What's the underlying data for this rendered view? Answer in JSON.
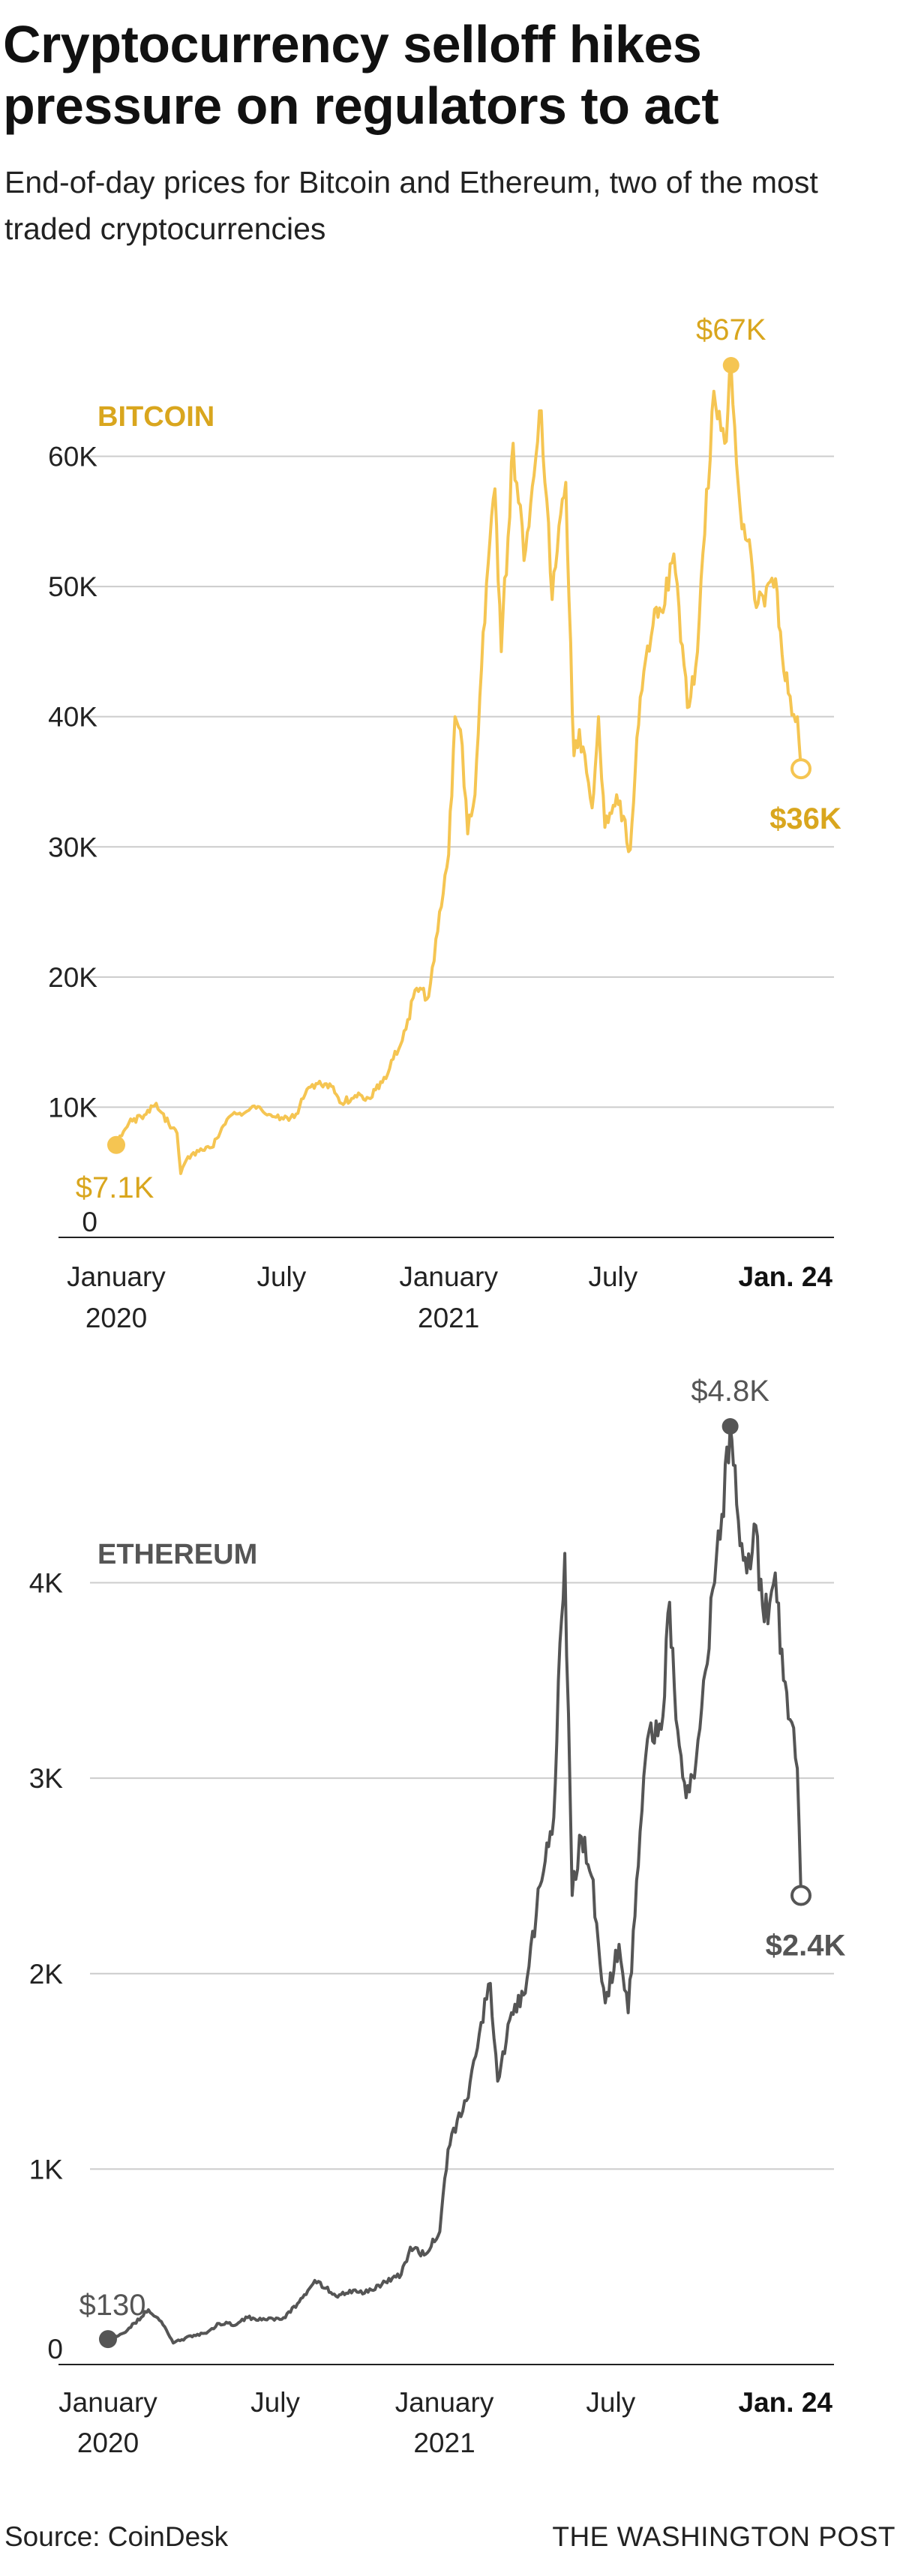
{
  "headline": "Cryptocurrency selloff hikes pressure on regulators to act",
  "subtitle": "End-of-day prices for Bitcoin and Ethereum, two of the most traded cryptocurrencies",
  "source": "Source: CoinDesk",
  "credit": "THE WASHINGTON POST",
  "colors": {
    "bitcoin": "#f5c552",
    "bitcoin_text": "#d9a61e",
    "ethereum": "#555555",
    "ethereum_text": "#555555",
    "grid": "#cccccc",
    "baseline": "#222222"
  },
  "chart_data": [
    {
      "type": "line",
      "series_name": "BITCOIN",
      "ylim": [
        0,
        67000
      ],
      "y_ticks": [
        {
          "value": 0,
          "label": "0"
        },
        {
          "value": 10000,
          "label": "10K"
        },
        {
          "value": 20000,
          "label": "20K"
        },
        {
          "value": 30000,
          "label": "30K"
        },
        {
          "value": 40000,
          "label": "40K"
        },
        {
          "value": 50000,
          "label": "50K"
        },
        {
          "value": 60000,
          "label": "60K"
        }
      ],
      "x_ticks": [
        {
          "date": "2020-01-01",
          "line1": "January",
          "line2": "2020",
          "bold": false
        },
        {
          "date": "2020-07-01",
          "line1": "July",
          "line2": "",
          "bold": false
        },
        {
          "date": "2021-01-01",
          "line1": "January",
          "line2": "2021",
          "bold": false
        },
        {
          "date": "2021-07-01",
          "line1": "July",
          "line2": "",
          "bold": false
        },
        {
          "date": "2022-01-24",
          "line1": "Jan. 24",
          "line2": "",
          "bold": true
        }
      ],
      "annotations": {
        "start": {
          "date": "2020-01-01",
          "value": 7100,
          "label": "$7.1K"
        },
        "peak": {
          "date": "2021-11-08",
          "value": 67000,
          "label": "$67K"
        },
        "end": {
          "date": "2022-01-24",
          "value": 36000,
          "label": "$36K"
        }
      },
      "points": [
        [
          "2020-01-01",
          7100
        ],
        [
          "2020-01-15",
          8800
        ],
        [
          "2020-02-01",
          9400
        ],
        [
          "2020-02-14",
          10300
        ],
        [
          "2020-02-28",
          8700
        ],
        [
          "2020-03-08",
          8000
        ],
        [
          "2020-03-12",
          4900
        ],
        [
          "2020-03-20",
          6200
        ],
        [
          "2020-04-01",
          6600
        ],
        [
          "2020-04-15",
          6900
        ],
        [
          "2020-04-30",
          8700
        ],
        [
          "2020-05-10",
          9600
        ],
        [
          "2020-05-20",
          9500
        ],
        [
          "2020-06-01",
          10100
        ],
        [
          "2020-06-15",
          9400
        ],
        [
          "2020-07-01",
          9200
        ],
        [
          "2020-07-15",
          9200
        ],
        [
          "2020-07-27",
          11000
        ],
        [
          "2020-08-10",
          11800
        ],
        [
          "2020-08-25",
          11600
        ],
        [
          "2020-09-05",
          10300
        ],
        [
          "2020-09-20",
          10900
        ],
        [
          "2020-10-05",
          10700
        ],
        [
          "2020-10-20",
          11900
        ],
        [
          "2020-11-01",
          13700
        ],
        [
          "2020-11-15",
          16000
        ],
        [
          "2020-11-25",
          19000
        ],
        [
          "2020-12-10",
          18500
        ],
        [
          "2020-12-20",
          23500
        ],
        [
          "2021-01-01",
          29400
        ],
        [
          "2021-01-08",
          40000
        ],
        [
          "2021-01-14",
          39000
        ],
        [
          "2021-01-22",
          31000
        ],
        [
          "2021-01-30",
          34000
        ],
        [
          "2021-02-08",
          46500
        ],
        [
          "2021-02-21",
          57500
        ],
        [
          "2021-02-28",
          45000
        ],
        [
          "2021-03-13",
          61000
        ],
        [
          "2021-03-25",
          52000
        ],
        [
          "2021-04-05",
          58500
        ],
        [
          "2021-04-13",
          63500
        ],
        [
          "2021-04-25",
          49000
        ],
        [
          "2021-05-10",
          58000
        ],
        [
          "2021-05-19",
          37000
        ],
        [
          "2021-05-25",
          39000
        ],
        [
          "2021-06-08",
          33000
        ],
        [
          "2021-06-15",
          40000
        ],
        [
          "2021-06-22",
          31500
        ],
        [
          "2021-07-05",
          34000
        ],
        [
          "2021-07-20",
          29800
        ],
        [
          "2021-07-31",
          41500
        ],
        [
          "2021-08-14",
          47000
        ],
        [
          "2021-08-25",
          48000
        ],
        [
          "2021-09-06",
          52500
        ],
        [
          "2021-09-21",
          40700
        ],
        [
          "2021-09-30",
          43800
        ],
        [
          "2021-10-10",
          54000
        ],
        [
          "2021-10-20",
          65000
        ],
        [
          "2021-11-01",
          61000
        ],
        [
          "2021-11-08",
          67000
        ],
        [
          "2021-11-18",
          56000
        ],
        [
          "2021-11-26",
          53500
        ],
        [
          "2021-12-04",
          49000
        ],
        [
          "2021-12-15",
          48500
        ],
        [
          "2021-12-27",
          50600
        ],
        [
          "2022-01-05",
          43500
        ],
        [
          "2022-01-10",
          41800
        ],
        [
          "2022-01-20",
          40000
        ],
        [
          "2022-01-24",
          36000
        ]
      ]
    },
    {
      "type": "line",
      "series_name": "ETHEREUM",
      "ylim": [
        0,
        4800
      ],
      "y_ticks": [
        {
          "value": 0,
          "label": "0"
        },
        {
          "value": 1000,
          "label": "1K"
        },
        {
          "value": 2000,
          "label": "2K"
        },
        {
          "value": 3000,
          "label": "3K"
        },
        {
          "value": 4000,
          "label": "4K"
        }
      ],
      "x_ticks": [
        {
          "date": "2020-01-01",
          "line1": "January",
          "line2": "2020",
          "bold": false
        },
        {
          "date": "2020-07-01",
          "line1": "July",
          "line2": "",
          "bold": false
        },
        {
          "date": "2021-01-01",
          "line1": "January",
          "line2": "2021",
          "bold": false
        },
        {
          "date": "2021-07-01",
          "line1": "July",
          "line2": "",
          "bold": false
        },
        {
          "date": "2022-01-24",
          "line1": "Jan. 24",
          "line2": "",
          "bold": true
        }
      ],
      "annotations": {
        "start": {
          "date": "2020-01-01",
          "value": 130,
          "label": "$130"
        },
        "peak": {
          "date": "2021-11-08",
          "value": 4800,
          "label": "$4.8K"
        },
        "end": {
          "date": "2022-01-24",
          "value": 2400,
          "label": "$2.4K"
        }
      },
      "points": [
        [
          "2020-01-01",
          130
        ],
        [
          "2020-01-20",
          165
        ],
        [
          "2020-02-14",
          280
        ],
        [
          "2020-02-28",
          220
        ],
        [
          "2020-03-12",
          110
        ],
        [
          "2020-03-25",
          135
        ],
        [
          "2020-04-15",
          160
        ],
        [
          "2020-05-01",
          210
        ],
        [
          "2020-05-20",
          205
        ],
        [
          "2020-06-01",
          240
        ],
        [
          "2020-06-20",
          230
        ],
        [
          "2020-07-10",
          240
        ],
        [
          "2020-07-27",
          320
        ],
        [
          "2020-08-13",
          430
        ],
        [
          "2020-08-25",
          390
        ],
        [
          "2020-09-05",
          350
        ],
        [
          "2020-09-20",
          380
        ],
        [
          "2020-10-10",
          370
        ],
        [
          "2020-10-25",
          410
        ],
        [
          "2020-11-15",
          460
        ],
        [
          "2020-11-25",
          600
        ],
        [
          "2020-12-10",
          560
        ],
        [
          "2020-12-27",
          680
        ],
        [
          "2021-01-05",
          1100
        ],
        [
          "2021-01-15",
          1250
        ],
        [
          "2021-01-25",
          1350
        ],
        [
          "2021-02-10",
          1750
        ],
        [
          "2021-02-20",
          1950
        ],
        [
          "2021-02-28",
          1450
        ],
        [
          "2021-03-15",
          1800
        ],
        [
          "2021-03-30",
          1900
        ],
        [
          "2021-04-15",
          2450
        ],
        [
          "2021-04-30",
          2800
        ],
        [
          "2021-05-05",
          3500
        ],
        [
          "2021-05-12",
          4150
        ],
        [
          "2021-05-20",
          2400
        ],
        [
          "2021-05-30",
          2700
        ],
        [
          "2021-06-10",
          2500
        ],
        [
          "2021-06-25",
          1850
        ],
        [
          "2021-07-10",
          2150
        ],
        [
          "2021-07-20",
          1800
        ],
        [
          "2021-07-31",
          2550
        ],
        [
          "2021-08-10",
          3200
        ],
        [
          "2021-08-25",
          3250
        ],
        [
          "2021-09-03",
          3900
        ],
        [
          "2021-09-10",
          3300
        ],
        [
          "2021-09-21",
          2900
        ],
        [
          "2021-09-30",
          3000
        ],
        [
          "2021-10-10",
          3500
        ],
        [
          "2021-10-22",
          4000
        ],
        [
          "2021-10-30",
          4350
        ],
        [
          "2021-11-08",
          4800
        ],
        [
          "2021-11-15",
          4400
        ],
        [
          "2021-11-26",
          4050
        ],
        [
          "2021-12-04",
          4300
        ],
        [
          "2021-12-15",
          3800
        ],
        [
          "2021-12-27",
          4050
        ],
        [
          "2022-01-05",
          3500
        ],
        [
          "2022-01-12",
          3300
        ],
        [
          "2022-01-20",
          3050
        ],
        [
          "2022-01-24",
          2400
        ]
      ]
    }
  ]
}
